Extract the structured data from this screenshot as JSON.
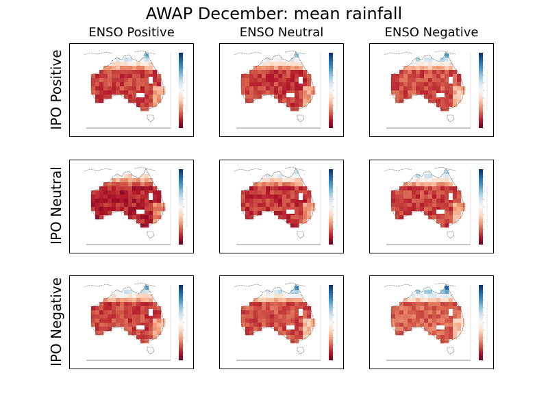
{
  "title": "AWAP December: mean rainfall",
  "columns": [
    "ENSO Positive",
    "ENSO Neutral",
    "ENSO Negative"
  ],
  "rows": [
    "IPO Positive",
    "IPO Neutral",
    "IPO Negative"
  ],
  "colormap": {
    "name": "RdBu",
    "stops": [
      "#67001f",
      "#b2182b",
      "#d6604d",
      "#f4a582",
      "#fddbc7",
      "#f7f7f7",
      "#d1e5f0",
      "#92c5de",
      "#4393c3",
      "#2166ac",
      "#053061"
    ]
  },
  "panels": [
    {
      "row": 0,
      "col": 0,
      "wetness": 0.45
    },
    {
      "row": 0,
      "col": 1,
      "wetness": 0.4
    },
    {
      "row": 0,
      "col": 2,
      "wetness": 0.55
    },
    {
      "row": 1,
      "col": 0,
      "wetness": 0.15
    },
    {
      "row": 1,
      "col": 1,
      "wetness": 0.35
    },
    {
      "row": 1,
      "col": 2,
      "wetness": 0.45
    },
    {
      "row": 2,
      "col": 0,
      "wetness": 0.45
    },
    {
      "row": 2,
      "col": 1,
      "wetness": 0.55
    },
    {
      "row": 2,
      "col": 2,
      "wetness": 0.7
    }
  ]
}
